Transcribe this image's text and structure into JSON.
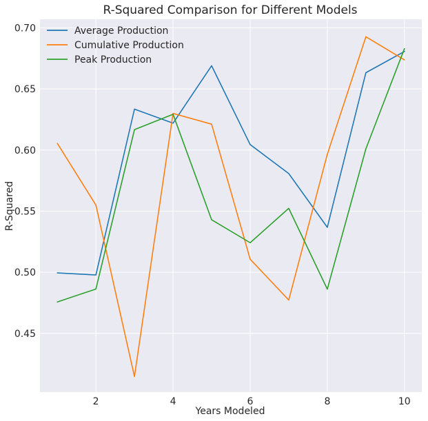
{
  "chart_data": {
    "type": "line",
    "title": "R-Squared Comparison for Different Models",
    "xlabel": "Years Modeled",
    "ylabel": "R-Squared",
    "x": [
      1,
      2,
      3,
      4,
      5,
      6,
      7,
      8,
      9,
      10
    ],
    "xlim": [
      0.55,
      10.45
    ],
    "ylim": [
      0.402,
      0.707
    ],
    "xticks": [
      2,
      4,
      6,
      8,
      10
    ],
    "yticks": [
      0.45,
      0.5,
      0.55,
      0.6,
      0.65,
      0.7
    ],
    "grid": true,
    "legend_position": "top-left",
    "series": [
      {
        "name": "Average Production",
        "color": "#1f77b4",
        "values": [
          0.4995,
          0.4978,
          0.6335,
          0.622,
          0.669,
          0.6045,
          0.5808,
          0.5368,
          0.6633,
          0.6807
        ]
      },
      {
        "name": "Cumulative Production",
        "color": "#ff7f0e",
        "values": [
          0.6055,
          0.555,
          0.4147,
          0.63,
          0.6212,
          0.5107,
          0.4773,
          0.5965,
          0.6927,
          0.6738
        ]
      },
      {
        "name": "Peak Production",
        "color": "#2ca02c",
        "values": [
          0.4757,
          0.4863,
          0.6167,
          0.6293,
          0.543,
          0.5242,
          0.5523,
          0.4862,
          0.601,
          0.683
        ]
      }
    ]
  }
}
